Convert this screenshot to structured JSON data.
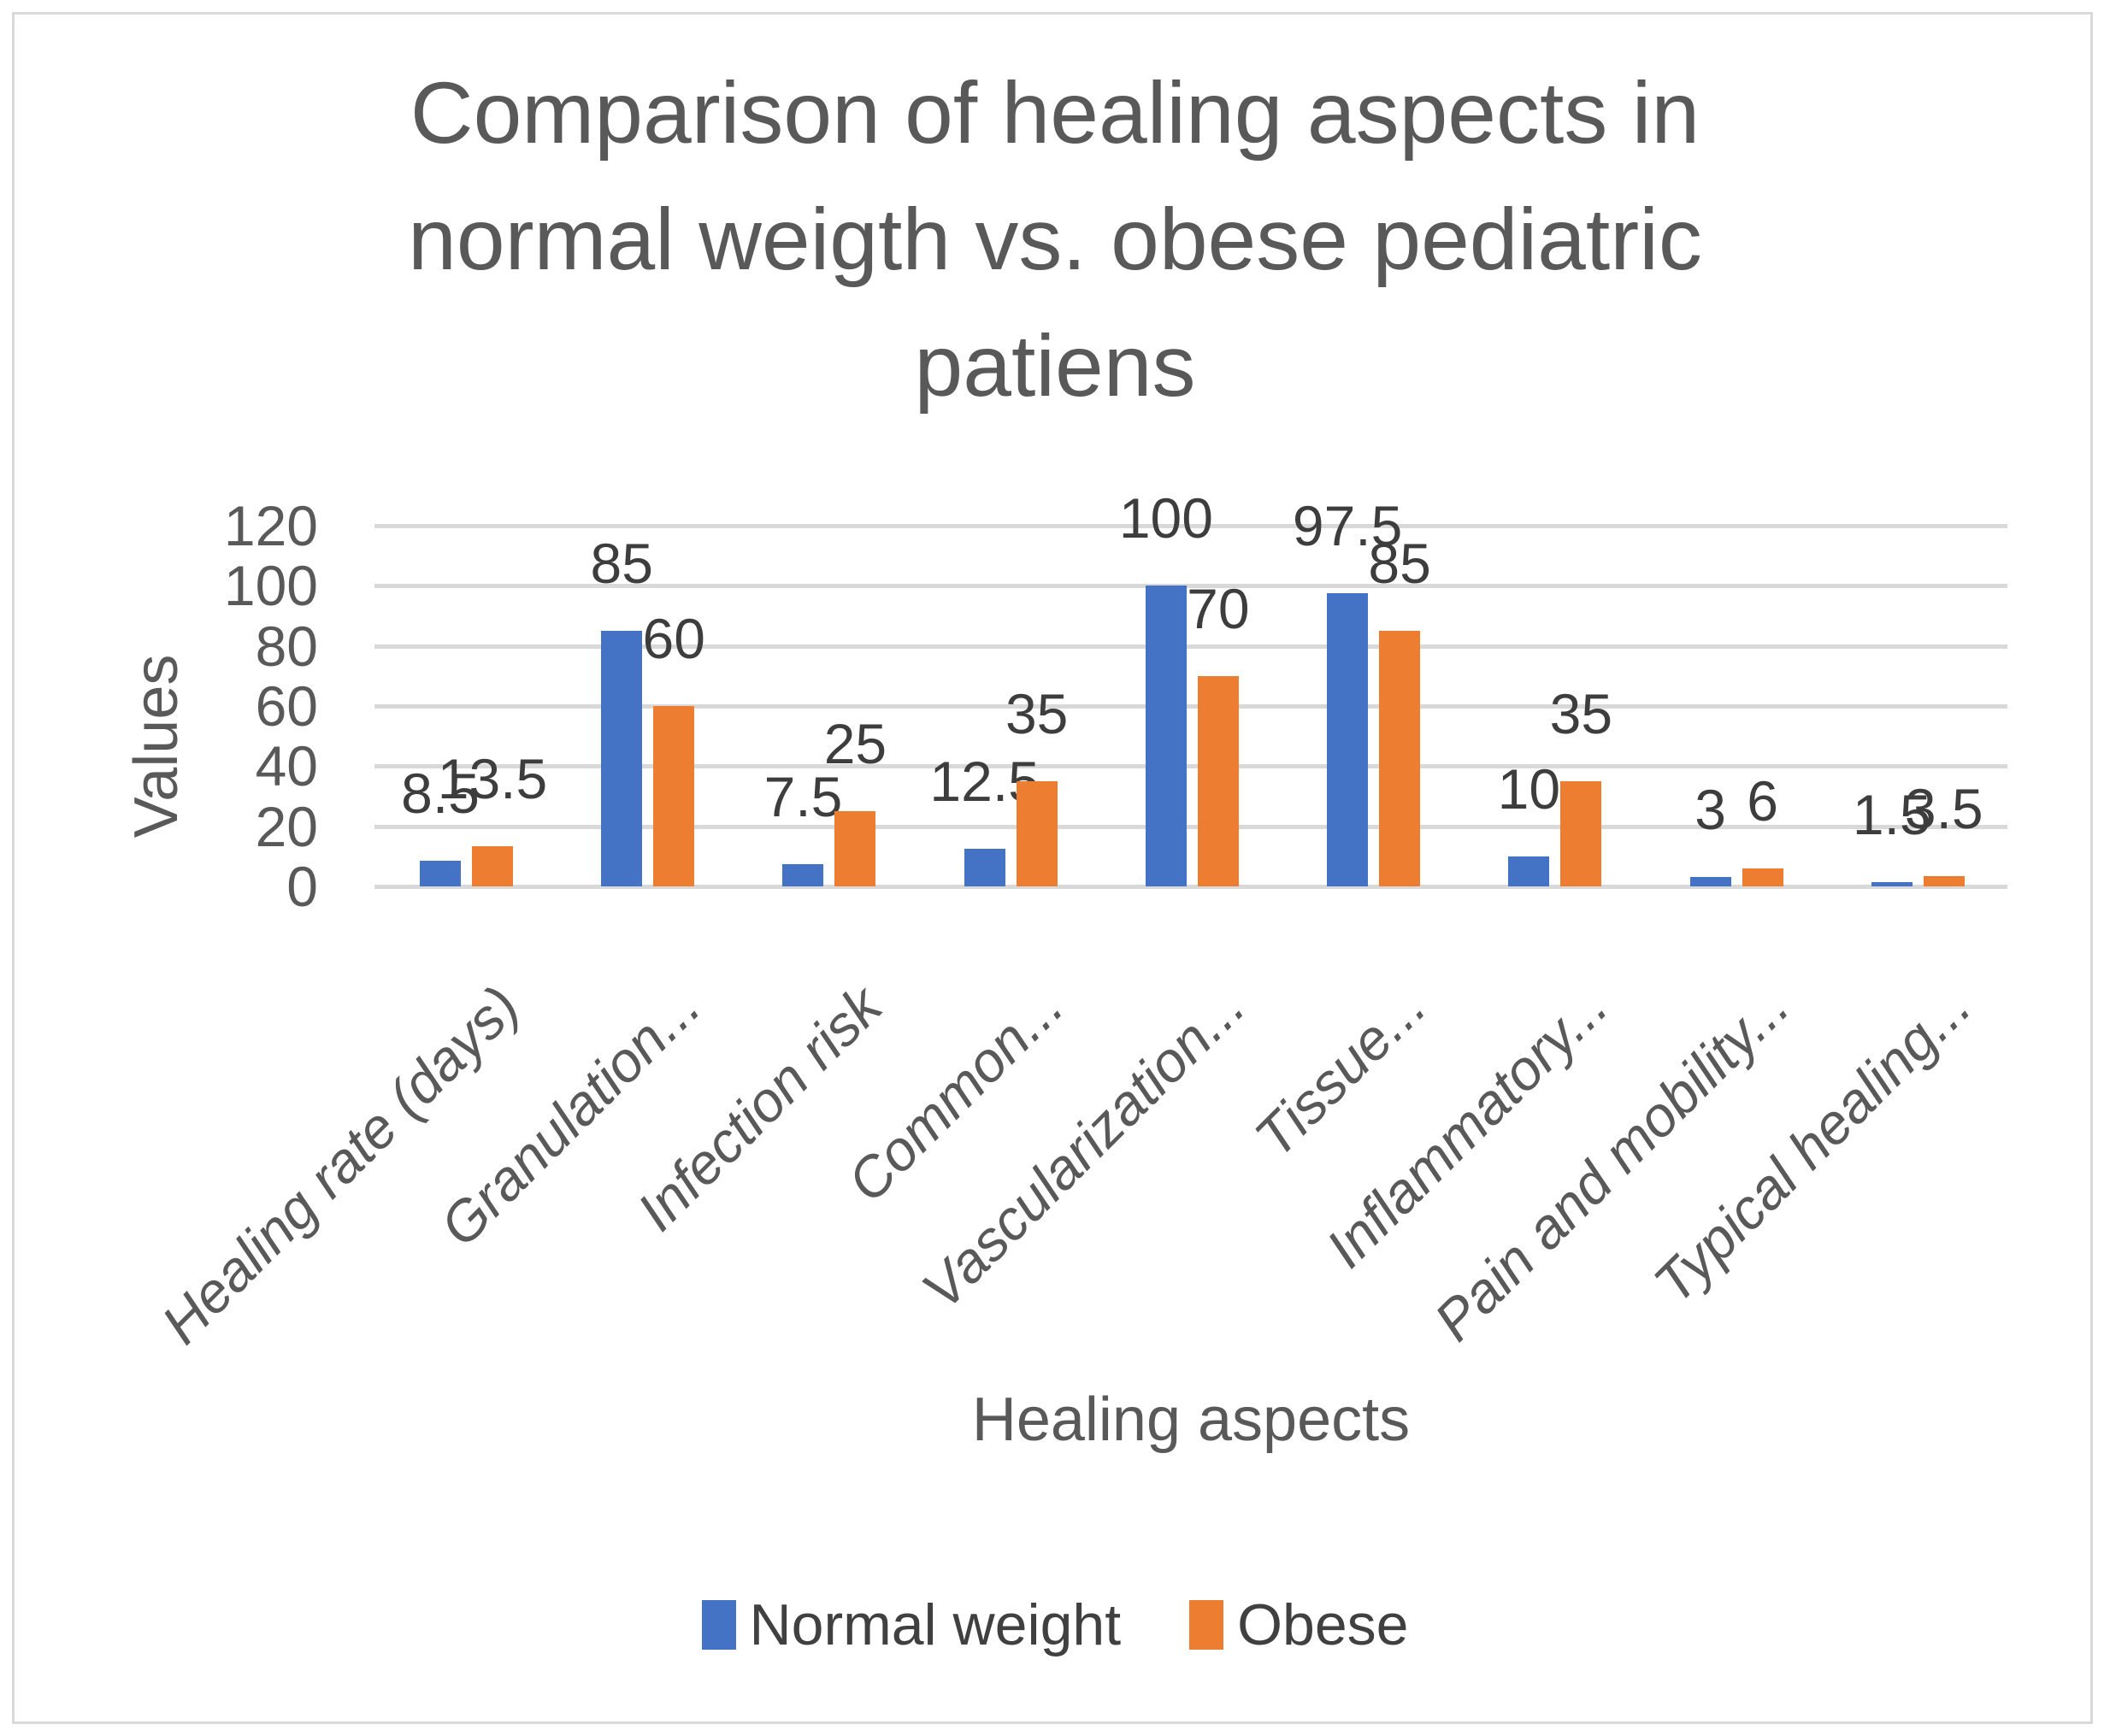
{
  "chart_data": {
    "type": "bar",
    "title": "Comparison of healing aspects in normal weigth vs. obese pediatric patiens",
    "title_lines": [
      "Comparison of healing aspects in",
      "normal weigth vs. obese pediatric",
      "patiens"
    ],
    "xlabel": "Healing aspects",
    "ylabel": "Values",
    "categories": [
      "Healing rate (days)",
      "Granulation...",
      "Infection risk",
      "Common...",
      "Vascularization...",
      "Tissue...",
      "Inflammatory...",
      "Pain and mobility...",
      "Typical healing..."
    ],
    "series": [
      {
        "name": "Normal weight",
        "color": "#4472C4",
        "values": [
          8.5,
          85,
          7.5,
          12.5,
          100,
          97.5,
          10,
          3,
          1.5
        ]
      },
      {
        "name": "Obese",
        "color": "#ED7D31",
        "values": [
          13.5,
          60,
          25,
          35,
          70,
          85,
          35,
          6,
          3.5
        ]
      }
    ],
    "data_labels_visible": true,
    "y_ticks": [
      0,
      20,
      40,
      60,
      80,
      100,
      120
    ],
    "ylim": [
      0,
      120
    ],
    "grid": true,
    "gridline_color": "#D9D9D9",
    "legend_position": "bottom",
    "text_color": "#595959",
    "data_label_color": "#3d3d3d"
  }
}
